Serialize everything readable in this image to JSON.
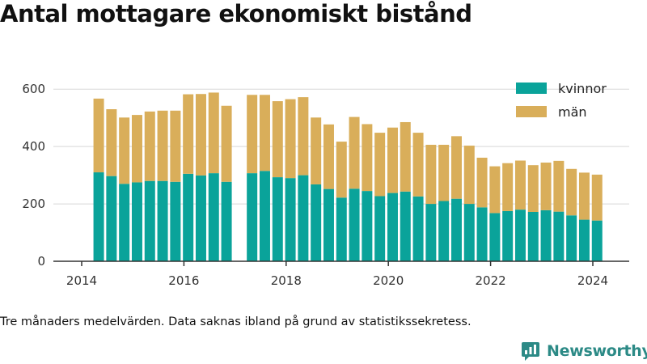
{
  "title": "Antal mottagare ekonomiskt bistånd",
  "note": "Tre månaders medelvärden. Data saknas ibland på grund av statistikssekretess.",
  "logo_text": "Newsworthy",
  "colors": {
    "kvinnor": "#0aa39a",
    "man": "#d9ae5a",
    "grid": "#d8d8d8",
    "axis": "#333333",
    "logo": "#2c8a86"
  },
  "chart_data": {
    "type": "bar",
    "stacked": true,
    "yticks": [
      0,
      200,
      400,
      600
    ],
    "ylim": [
      0,
      640
    ],
    "xticks": [
      "2014",
      "2016",
      "2018",
      "2020",
      "2022",
      "2024"
    ],
    "legend_position": "top-right",
    "grid": "y",
    "x": [
      "2014-04",
      "2014-07",
      "2014-10",
      "2015-01",
      "2015-04",
      "2015-07",
      "2015-10",
      "2016-01",
      "2016-04",
      "2016-07",
      "2016-10",
      "2017-04",
      "2017-07",
      "2017-10",
      "2018-01",
      "2018-04",
      "2018-07",
      "2018-10",
      "2019-01",
      "2019-04",
      "2019-07",
      "2019-10",
      "2020-01",
      "2020-04",
      "2020-07",
      "2020-10",
      "2021-01",
      "2021-04",
      "2021-07",
      "2021-10",
      "2022-01",
      "2022-04",
      "2022-07",
      "2022-10",
      "2023-01",
      "2023-04",
      "2023-07",
      "2023-10",
      "2024-01"
    ],
    "series": [
      {
        "name": "kvinnor",
        "values": [
          310,
          297,
          270,
          275,
          280,
          280,
          277,
          305,
          299,
          307,
          277,
          307,
          315,
          293,
          290,
          300,
          268,
          252,
          222,
          253,
          245,
          227,
          238,
          243,
          226,
          200,
          210,
          218,
          200,
          188,
          168,
          175,
          180,
          172,
          178,
          173,
          160,
          145,
          142
        ]
      },
      {
        "name": "män",
        "values": [
          257,
          233,
          231,
          235,
          242,
          245,
          248,
          277,
          284,
          281,
          265,
          273,
          265,
          265,
          275,
          272,
          233,
          225,
          195,
          250,
          233,
          221,
          228,
          242,
          222,
          206,
          196,
          218,
          203,
          173,
          163,
          167,
          171,
          163,
          166,
          177,
          162,
          164,
          160
        ]
      }
    ]
  }
}
